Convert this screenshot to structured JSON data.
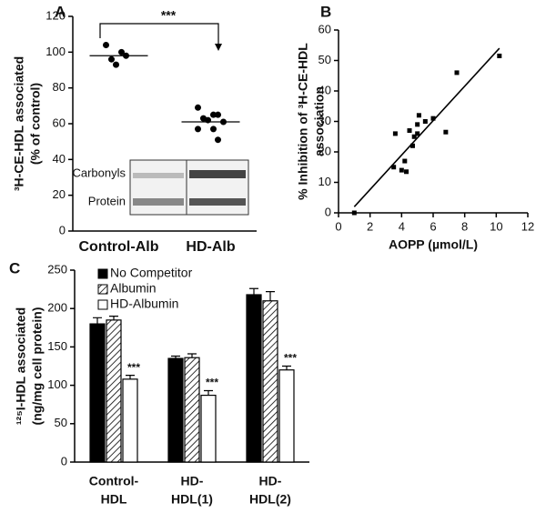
{
  "chart_data": [
    {
      "type": "strip",
      "panel": "A",
      "categories": [
        "Control-Alb",
        "HD-Alb"
      ],
      "values": [
        [
          104,
          100,
          98,
          96,
          93
        ],
        [
          69,
          65,
          65,
          63,
          62,
          61,
          57,
          57,
          51
        ]
      ],
      "means": [
        98,
        61
      ],
      "color": "#000000",
      "ylabel": [
        "³H-CE-HDL associated",
        "(% of control)"
      ],
      "ylim": [
        0,
        120
      ],
      "yticks": [
        0,
        20,
        40,
        60,
        80,
        100,
        120
      ],
      "annotation": "***",
      "inset_labels": [
        "Carbonyls",
        "Protein"
      ]
    },
    {
      "type": "scatter",
      "panel": "B",
      "x": [
        1,
        3.5,
        3.6,
        4,
        4.2,
        4.3,
        4.5,
        4.7,
        4.8,
        5,
        5,
        5.1,
        5.5,
        6,
        6.8,
        7.5,
        10.2
      ],
      "values": [
        0,
        15,
        26,
        14,
        17,
        13.5,
        27,
        22,
        25,
        29,
        26,
        32,
        30,
        31,
        26.5,
        46,
        51.5
      ],
      "fit": {
        "x": [
          1,
          10.2
        ],
        "values": [
          2,
          54
        ]
      },
      "color": "#000000",
      "xlabel": "AOPP (µmol/L)",
      "ylabel": [
        "% Inhibition of ³H-CE-HDL",
        "association"
      ],
      "xlim": [
        0,
        12
      ],
      "xticks": [
        0,
        2,
        4,
        6,
        8,
        10,
        12
      ],
      "ylim": [
        0,
        60
      ],
      "yticks": [
        0,
        10,
        20,
        30,
        40,
        50,
        60
      ]
    },
    {
      "type": "bar",
      "panel": "C",
      "categories": [
        [
          "Control-",
          "HDL"
        ],
        [
          "HD-",
          "HDL(1)"
        ],
        [
          "HD-",
          "HDL(2)"
        ]
      ],
      "series": [
        {
          "name": "No Competitor",
          "color": "#000000",
          "hatch": false,
          "values": [
            180,
            135,
            218
          ],
          "errors": [
            8,
            3,
            8
          ]
        },
        {
          "name": "Albumin",
          "color": "#ffffff",
          "hatch": true,
          "values": [
            185,
            136,
            210
          ],
          "errors": [
            5,
            5,
            12
          ]
        },
        {
          "name": "HD-Albumin",
          "color": "#ffffff",
          "hatch": false,
          "values": [
            108,
            87,
            120
          ],
          "errors": [
            5,
            6,
            5
          ]
        }
      ],
      "annotations": [
        "***",
        "***",
        "***"
      ],
      "ylabel": [
        "¹²⁵I-HDL associated",
        "(ng/mg cell protein)"
      ],
      "ylim": [
        0,
        250
      ],
      "yticks": [
        0,
        50,
        100,
        150,
        200,
        250
      ]
    }
  ]
}
